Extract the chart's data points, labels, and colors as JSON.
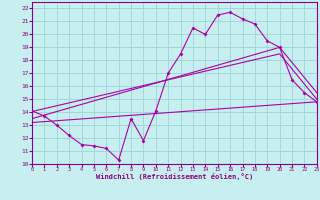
{
  "xlabel": "Windchill (Refroidissement éolien,°C)",
  "xlim": [
    0,
    23
  ],
  "ylim": [
    10,
    22.5
  ],
  "xticks": [
    0,
    1,
    2,
    3,
    4,
    5,
    6,
    7,
    8,
    9,
    10,
    11,
    12,
    13,
    14,
    15,
    16,
    17,
    18,
    19,
    20,
    21,
    22,
    23
  ],
  "yticks": [
    10,
    11,
    12,
    13,
    14,
    15,
    16,
    17,
    18,
    19,
    20,
    21,
    22
  ],
  "bg_color": "#c8eff0",
  "grid_color": "#a0d8dc",
  "line_color": "#aa00aa",
  "curve1_x": [
    0,
    1,
    2,
    3,
    4,
    5,
    6,
    7,
    8,
    9,
    10,
    11,
    12,
    13,
    14,
    15,
    16,
    17,
    18,
    19,
    20,
    21,
    22,
    23
  ],
  "curve1_y": [
    14.1,
    13.7,
    13.0,
    12.2,
    11.5,
    11.4,
    11.2,
    10.3,
    13.5,
    11.8,
    14.1,
    17.0,
    18.5,
    20.5,
    20.0,
    21.5,
    21.7,
    21.2,
    20.8,
    19.5,
    19.0,
    16.5,
    15.5,
    14.8
  ],
  "trend1_x": [
    0,
    23
  ],
  "trend1_y": [
    13.2,
    14.8
  ],
  "trend2_x": [
    0,
    20,
    23
  ],
  "trend2_y": [
    13.5,
    19.0,
    15.5
  ],
  "trend3_x": [
    0,
    20,
    23
  ],
  "trend3_y": [
    14.05,
    18.5,
    15.0
  ]
}
